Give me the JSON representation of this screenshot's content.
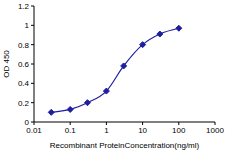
{
  "chart_data": {
    "type": "line",
    "x_label": "Recombinant ProteinConcentration(ng/ml)",
    "y_label": "OD 450",
    "x": [
      0.03,
      0.1,
      0.3,
      1,
      3,
      10,
      30,
      100
    ],
    "values": [
      0.1,
      0.13,
      0.2,
      0.32,
      0.58,
      0.8,
      0.91,
      0.97
    ],
    "color": "#1f1f9e",
    "marker": "diamond",
    "line_style": "solid",
    "log": "x",
    "xlim": [
      0.01,
      1000
    ],
    "xticks": [
      0.01,
      0.1,
      1,
      10,
      100,
      1000
    ],
    "ylim": [
      0,
      1.2
    ],
    "yticks": [
      0,
      0.2,
      0.4,
      0.6,
      0.8,
      1,
      1.2
    ],
    "grid": false
  }
}
